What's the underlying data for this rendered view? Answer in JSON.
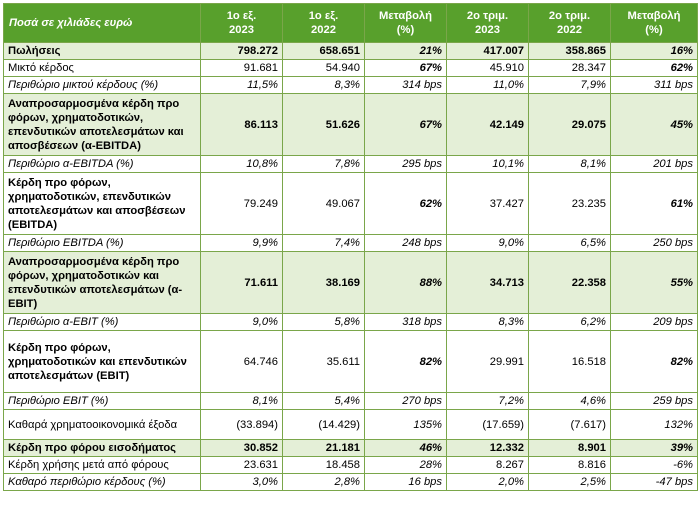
{
  "header": [
    "Ποσά σε χιλιάδες ευρώ",
    "1ο εξ.\n2023",
    "1ο εξ.\n2022",
    "Μεταβολή\n(%)",
    "2ο τριμ.\n2023",
    "2ο τριμ.\n2022",
    "Μεταβολή\n(%)"
  ],
  "rows": [
    {
      "style": "shade bold",
      "h": 15,
      "cells": [
        "Πωλήσεις",
        "798.272",
        "658.651",
        "21%",
        "417.007",
        "358.865",
        "16%"
      ]
    },
    {
      "style": "",
      "h": 15,
      "cells": [
        "Μικτό κέρδος",
        "91.681",
        "54.940",
        "67%",
        "45.910",
        "28.347",
        "62%"
      ]
    },
    {
      "style": "ital",
      "h": 15,
      "cells": [
        "Περιθώριο μικτού κέρδους (%)",
        "11,5%",
        "8,3%",
        "314 bps",
        "11,0%",
        "7,9%",
        "311 bps"
      ]
    },
    {
      "style": "shade bold",
      "h": 62,
      "cells": [
        "Αναπροσαρμοσμένα κέρδη προ φόρων, χρηματοδοτικών, επενδυτικών αποτελεσμάτων και αποσβέσεων (α-EBITDA)",
        "86.113",
        "51.626",
        "67%",
        "42.149",
        "29.075",
        "45%"
      ]
    },
    {
      "style": "ital",
      "h": 15,
      "cells": [
        "Περιθώριο α-EBITDA (%)",
        "10,8%",
        "7,8%",
        "295 bps",
        "10,1%",
        "8,1%",
        "201 bps"
      ]
    },
    {
      "style": "bold-first",
      "h": 62,
      "cells": [
        "Κέρδη προ φόρων, χρηματοδοτικών, επενδυτικών αποτελεσμάτων και αποσβέσεων (EBITDA)",
        "79.249",
        "49.067",
        "62%",
        "37.427",
        "23.235",
        "61%"
      ]
    },
    {
      "style": "ital",
      "h": 15,
      "cells": [
        "Περιθώριο EBITDA (%)",
        "9,9%",
        "7,4%",
        "248 bps",
        "9,0%",
        "6,5%",
        "250 bps"
      ]
    },
    {
      "style": "shade bold",
      "h": 62,
      "cells": [
        "Αναπροσαρμοσμένα κέρδη προ φόρων, χρηματοδοτικών και επενδυτικών αποτελεσμάτων (α-EBIT)",
        "71.611",
        "38.169",
        "88%",
        "34.713",
        "22.358",
        "55%"
      ]
    },
    {
      "style": "ital",
      "h": 15,
      "cells": [
        "Περιθώριο α-EBIT (%)",
        "9,0%",
        "5,8%",
        "318 bps",
        "8,3%",
        "6,2%",
        "209 bps"
      ]
    },
    {
      "style": "bold-first",
      "h": 62,
      "cells": [
        "Κέρδη προ φόρων, χρηματοδοτικών και επενδυτικών αποτελεσμάτων (EBIT)",
        "64.746",
        "35.611",
        "82%",
        "29.991",
        "16.518",
        "82%"
      ]
    },
    {
      "style": "ital",
      "h": 15,
      "cells": [
        "Περιθώριο EBIT (%)",
        "8,1%",
        "5,4%",
        "270 bps",
        "7,2%",
        "4,6%",
        "259 bps"
      ]
    },
    {
      "style": "",
      "h": 30,
      "cells": [
        "Καθαρά χρηματοοικονομικά έξοδα",
        "(33.894)",
        "(14.429)",
        "135%",
        "(17.659)",
        "(7.617)",
        "132%"
      ]
    },
    {
      "style": "shade bold",
      "h": 15,
      "cells": [
        "Κέρδη προ φόρου εισοδήματος",
        "30.852",
        "21.181",
        "46%",
        "12.332",
        "8.901",
        "39%"
      ]
    },
    {
      "style": "",
      "h": 15,
      "cells": [
        "Κέρδη χρήσης μετά από φόρους",
        "23.631",
        "18.458",
        "28%",
        "8.267",
        "8.816",
        "-6%"
      ]
    },
    {
      "style": "ital",
      "h": 15,
      "cells": [
        "Καθαρό περιθώριο κέρδους (%)",
        "3,0%",
        "2,8%",
        "16 bps",
        "2,0%",
        "2,5%",
        "-47 bps"
      ]
    }
  ]
}
